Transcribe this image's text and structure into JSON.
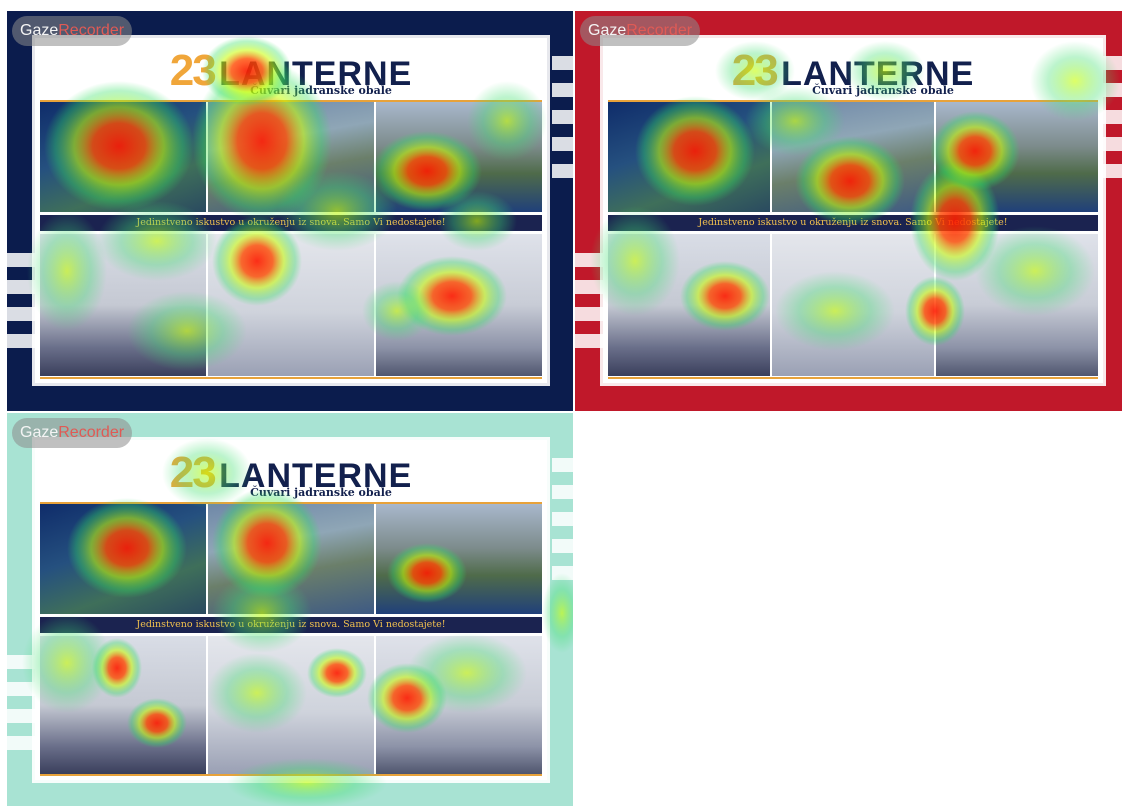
{
  "recorder": {
    "brand_primary": "Gaze",
    "brand_secondary": "Recorder"
  },
  "flyer": {
    "number": "23",
    "title": "LANTERNE",
    "subtitle": "Čuvari jadranske obale",
    "tagline": "Jedinstveno iskustvo u okruženju iz snova. Samo Vi nedostajete!"
  },
  "panels": [
    {
      "background": "#0b1c4d"
    },
    {
      "background": "#c0182a"
    },
    {
      "background": "#a8e3d3"
    }
  ],
  "colors": {
    "navy": "#12204d",
    "gold": "#f0a63a",
    "tagline_text": "#f2c14e"
  }
}
